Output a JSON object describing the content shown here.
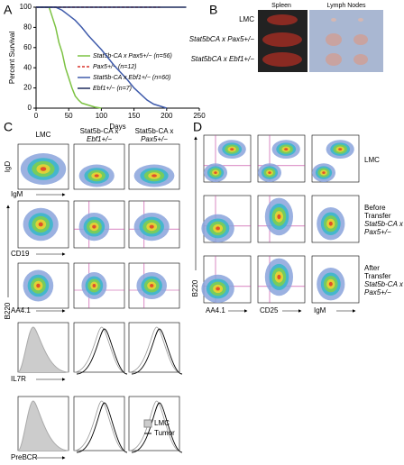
{
  "chart_data": {
    "type": "line",
    "y_label": "Percent Survival",
    "x_label": "Days",
    "xlim": [
      0,
      250
    ],
    "ylim": [
      0,
      100
    ],
    "xticks": [
      0,
      50,
      100,
      150,
      200,
      250
    ],
    "yticks": [
      0,
      20,
      40,
      60,
      80,
      100
    ],
    "series": [
      {
        "name": "Stat5b-CA x Pax5+/− (n=56)",
        "color": "#7cc242",
        "dashed": false,
        "x": [
          0,
          20,
          25,
          30,
          35,
          40,
          45,
          50,
          55,
          60,
          65,
          70,
          80,
          90,
          100
        ],
        "values": [
          100,
          100,
          90,
          80,
          65,
          55,
          40,
          30,
          20,
          12,
          8,
          5,
          3,
          1,
          0
        ]
      },
      {
        "name": "Pax5+/− (n=12)",
        "color": "#d9342b",
        "dashed": true,
        "x": [
          0,
          190
        ],
        "values": [
          100,
          100
        ]
      },
      {
        "name": "Stat5b-CA x Ebf1+/− (n=60)",
        "color": "#3f5bab",
        "dashed": false,
        "x": [
          0,
          30,
          40,
          50,
          60,
          70,
          80,
          90,
          100,
          110,
          120,
          130,
          140,
          150,
          160,
          170,
          180,
          190,
          200
        ],
        "values": [
          100,
          100,
          97,
          92,
          87,
          80,
          72,
          65,
          58,
          50,
          42,
          35,
          28,
          20,
          14,
          8,
          4,
          2,
          0
        ]
      },
      {
        "name": "Ebf1+/− (n=7)",
        "color": "#1d2a5c",
        "dashed": false,
        "x": [
          0,
          230
        ],
        "values": [
          100,
          100
        ]
      }
    ]
  },
  "panel_labels": [
    "A",
    "B",
    "C",
    "D"
  ],
  "panel_b": {
    "columns": [
      "Spleen",
      "Lymph Nodes"
    ],
    "rows": [
      "LMC",
      "Stat5bCA x Pax5+/−",
      "Stat5bCA x Ebf1+/−"
    ]
  },
  "panel_c": {
    "columns": [
      [
        "LMC"
      ],
      [
        "Stat5b-CA x",
        "Ebf1+/−"
      ],
      [
        "Stat5b-CA x",
        "Pax5+/−"
      ]
    ],
    "y_labels": [
      "IgD",
      "B220"
    ],
    "x_labels": [
      "IgM",
      "CD19",
      "AA4.1",
      "IL7R",
      "PreBCR"
    ],
    "legend": [
      "LMC",
      "Tumor"
    ]
  },
  "panel_d": {
    "rows": [
      [
        "LMC"
      ],
      [
        "Before",
        "Transfer",
        "Stat5b-CA x",
        "Pax5+/−"
      ],
      [
        "After",
        "Transfer",
        "Stat5b-CA x",
        "Pax5+/−"
      ]
    ],
    "x_labels": [
      "AA4.1",
      "CD25",
      "IgM"
    ],
    "y_label": "B220"
  }
}
